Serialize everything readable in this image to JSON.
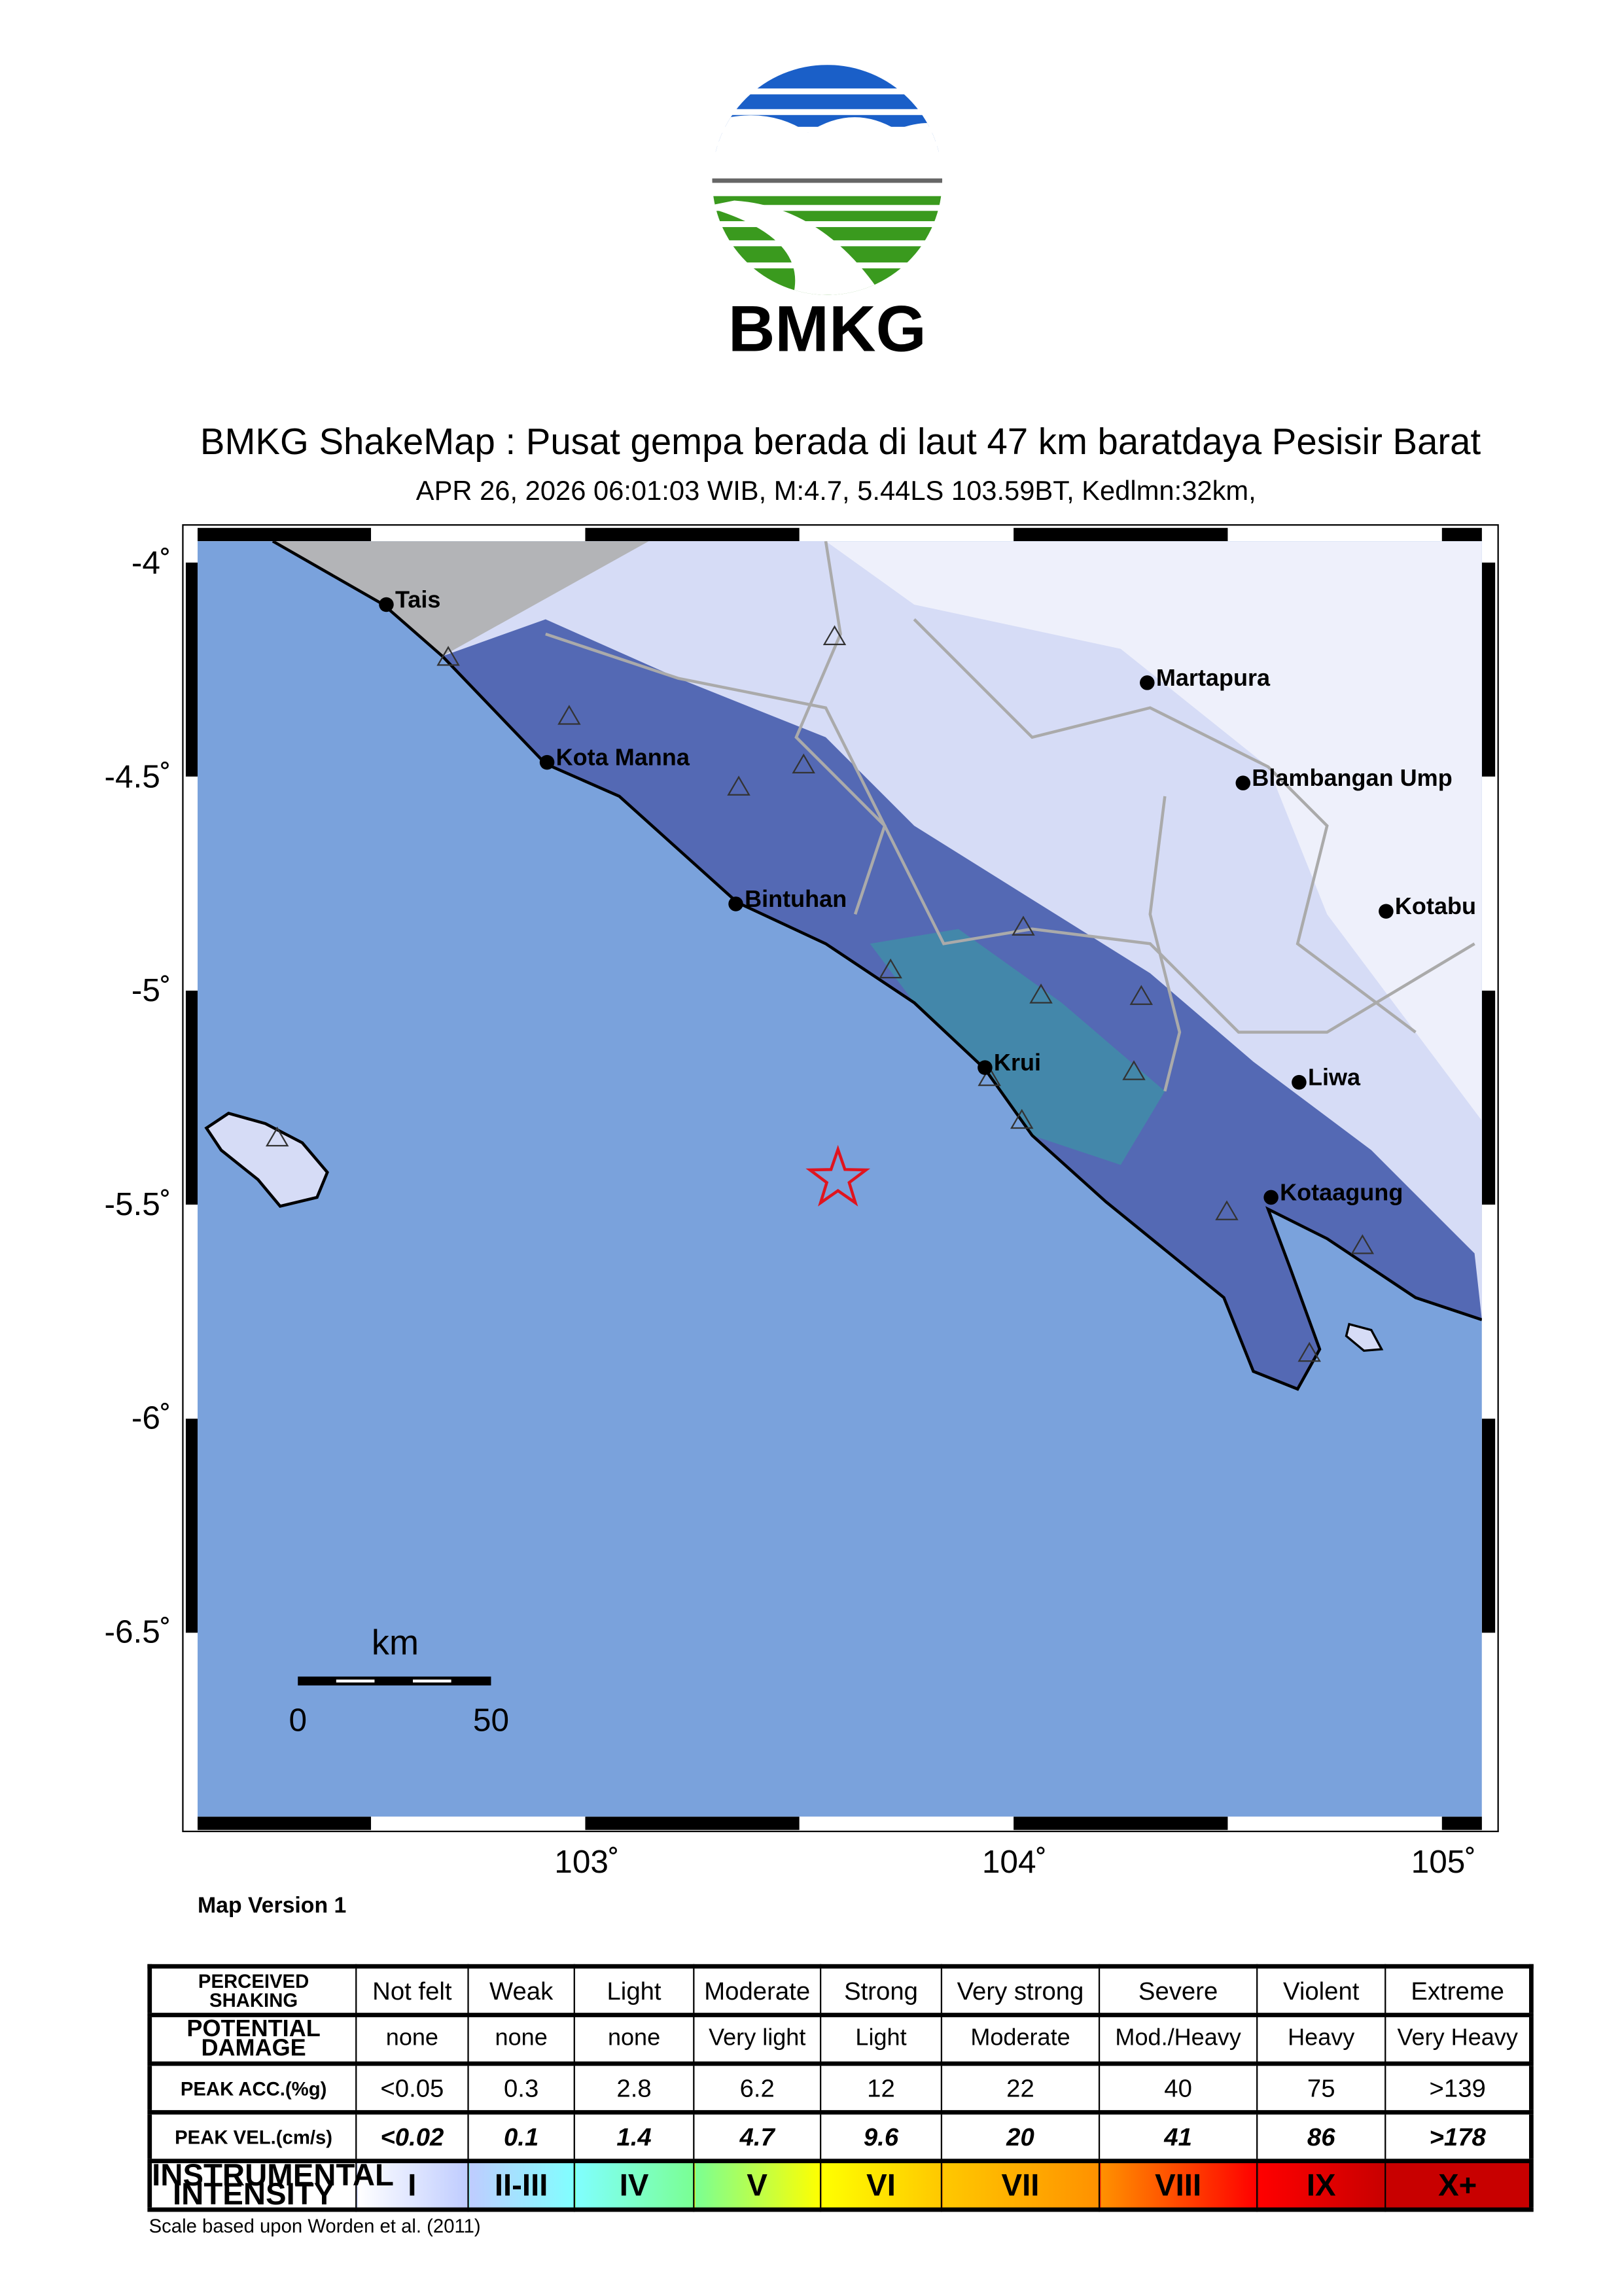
{
  "logo": {
    "text": "BMKG",
    "colors": {
      "blue": "#1a5fc8",
      "green": "#3a9a1e",
      "gray": "#666666"
    }
  },
  "header": {
    "title": "BMKG ShakeMap : Pusat gempa berada di laut 47 km baratdaya Pesisir Barat",
    "subtitle": "APR 26, 2026 06:01:03 WIB, M:4.7, 5.44LS 103.59BT, Kedlmn:32km,"
  },
  "map": {
    "lat_ticks": [
      "-4˚",
      "-4.5˚",
      "-5˚",
      "-5.5˚",
      "-6˚",
      "-6.5˚"
    ],
    "lon_ticks": [
      "103˚",
      "104˚",
      "105˚"
    ],
    "sea_color": "#7aa2dc",
    "epicenter": {
      "lat": -5.44,
      "lon": 103.59,
      "color": "#e0141e"
    },
    "cities": [
      "Tais",
      "Kota Manna",
      "Bintuhan",
      "Krui",
      "Martapura",
      "Blambangan Ump",
      "Kotabu",
      "Liwa",
      "Kotaagung"
    ],
    "scale_bar": {
      "unit": "km",
      "start": "0",
      "end": "50"
    },
    "version": "Map Version 1"
  },
  "legend": {
    "rows": [
      {
        "header": [
          "PERCEIVED",
          "SHAKING"
        ],
        "cells": [
          "Not felt",
          "Weak",
          "Light",
          "Moderate",
          "Strong",
          "Very strong",
          "Severe",
          "Violent",
          "Extreme"
        ]
      },
      {
        "header": [
          "POTENTIAL",
          "DAMAGE"
        ],
        "cells": [
          "none",
          "none",
          "none",
          "Very light",
          "Light",
          "Moderate",
          "Mod./Heavy",
          "Heavy",
          "Very Heavy"
        ]
      },
      {
        "header": [
          "PEAK ACC.(%g)"
        ],
        "cells": [
          "<0.05",
          "0.3",
          "2.8",
          "6.2",
          "12",
          "22",
          "40",
          "75",
          ">139"
        ]
      },
      {
        "header": [
          "PEAK VEL.(cm/s)"
        ],
        "cells": [
          "<0.02",
          "0.1",
          "1.4",
          "4.7",
          "9.6",
          "20",
          "41",
          "86",
          ">178"
        ]
      },
      {
        "header": [
          "INSTRUMENTAL",
          "INTENSITY"
        ],
        "cells": [
          "I",
          "II-III",
          "IV",
          "V",
          "VI",
          "VII",
          "VIII",
          "IX",
          "X+"
        ]
      }
    ],
    "intensity_colors": [
      "#ffffff",
      "#bfccff",
      "#80ffff",
      "#7aff93",
      "#ffff00",
      "#ffc800",
      "#ff9100",
      "#ff0000",
      "#c80000"
    ],
    "footnote": "Scale based upon Worden et al. (2011)"
  }
}
